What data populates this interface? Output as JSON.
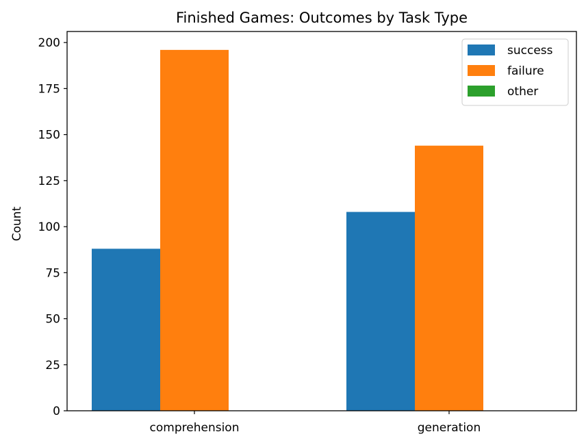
{
  "chart_data": {
    "type": "bar",
    "title": "Finished Games: Outcomes by Task Type",
    "xlabel": "",
    "ylabel": "Count",
    "categories": [
      "comprehension",
      "generation"
    ],
    "series": [
      {
        "name": "success",
        "values": [
          88,
          108
        ],
        "color": "#1f77b4"
      },
      {
        "name": "failure",
        "values": [
          196,
          144
        ],
        "color": "#ff7f0e"
      },
      {
        "name": "other",
        "values": [
          0,
          0
        ],
        "color": "#2ca02c"
      }
    ],
    "ylim": [
      0,
      206
    ],
    "yticks": [
      0,
      25,
      50,
      75,
      100,
      125,
      150,
      175,
      200
    ],
    "grid": false,
    "legend_position": "top-right"
  }
}
